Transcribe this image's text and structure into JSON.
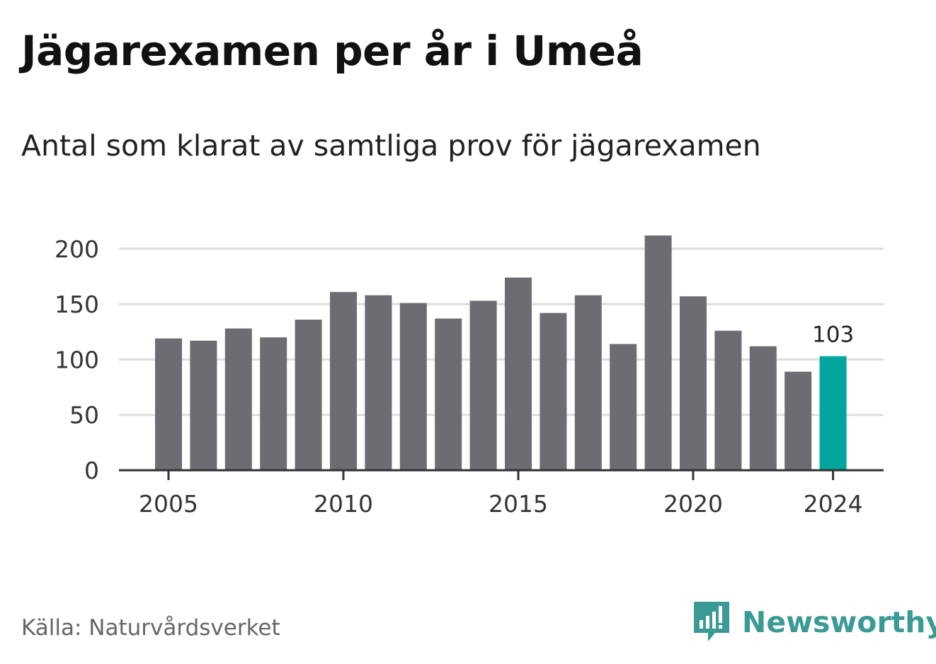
{
  "title": "Jägarexamen per år i Umeå",
  "subtitle": "Antal som klarat av samtliga prov för jägarexamen",
  "source": "Källa: Naturvårdsverket",
  "brand": {
    "name": "Newsworthy",
    "color": "#3a9a95",
    "icon": "newsworthy-logo-icon"
  },
  "colors": {
    "bar": "#6d6c72",
    "highlight": "#00a59b",
    "grid": "#dddddd",
    "axis": "#333333"
  },
  "chart_data": {
    "type": "bar",
    "categories": [
      "2005",
      "2006",
      "2007",
      "2008",
      "2009",
      "2010",
      "2011",
      "2012",
      "2013",
      "2014",
      "2015",
      "2016",
      "2017",
      "2018",
      "2019",
      "2020",
      "2021",
      "2022",
      "2023",
      "2024"
    ],
    "values": [
      119,
      117,
      128,
      120,
      136,
      161,
      158,
      151,
      137,
      153,
      174,
      142,
      158,
      114,
      212,
      157,
      126,
      112,
      89,
      103
    ],
    "x_tick_labels": [
      "2005",
      "2010",
      "2015",
      "2020",
      "2024"
    ],
    "y_ticks": [
      0,
      50,
      100,
      150,
      200
    ],
    "ylim": [
      0,
      212
    ],
    "highlight_category": "2024",
    "data_labels": [
      {
        "category": "2024",
        "text": "103"
      }
    ],
    "grid": true
  }
}
